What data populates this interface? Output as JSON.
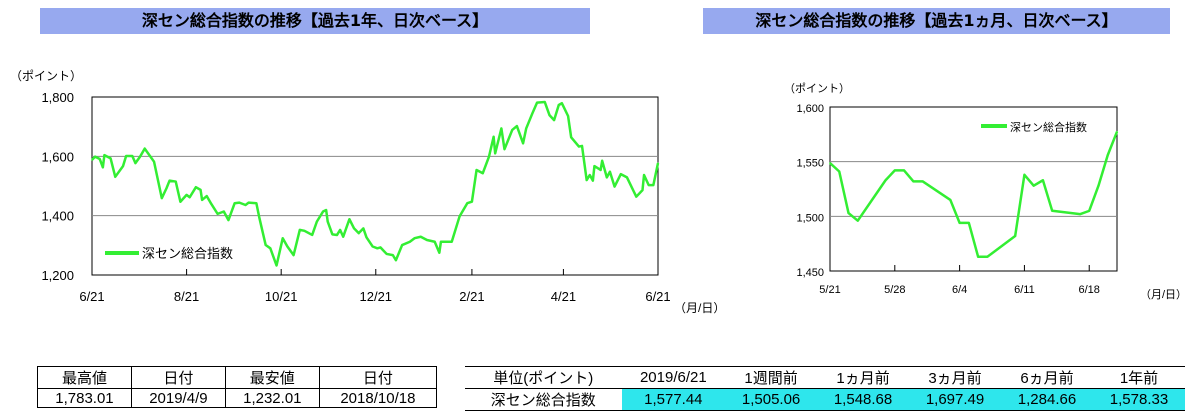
{
  "titles": {
    "left": "深セン総合指数の推移【過去1年、日次ベース】",
    "right": "深セン総合指数の推移【過去1ヵ月、日次ベース】"
  },
  "colors": {
    "line": "#33ee33",
    "title_bg": "#97a9ef",
    "highlight": "#2ee6ec"
  },
  "chart_data": [
    {
      "type": "line",
      "ylabel": "（ポイント）",
      "xlabel": "（月/日）",
      "ylim": [
        1200,
        1800
      ],
      "yticks": [
        "1,800",
        "1,600",
        "1,400",
        "1,200"
      ],
      "ytick_values": [
        1800,
        1600,
        1400,
        1200
      ],
      "xlim": [
        "2018-06-21",
        "2019-06-21"
      ],
      "xticks": [
        "6/21",
        "8/21",
        "10/21",
        "12/21",
        "2/21",
        "4/21",
        "6/21"
      ],
      "xtick_dates": [
        "2018-06-21",
        "2018-08-21",
        "2018-10-21",
        "2018-12-21",
        "2019-02-21",
        "2019-04-21",
        "2019-06-21"
      ],
      "grid": true,
      "legend": "bottom-left",
      "series": [
        {
          "name": "深セン総合指数",
          "x": [
            "2018-06-21",
            "2018-06-23",
            "2018-06-26",
            "2018-06-28",
            "2018-06-29",
            "2018-07-03",
            "2018-07-06",
            "2018-07-11",
            "2018-07-13",
            "2018-07-17",
            "2018-07-19",
            "2018-07-22",
            "2018-07-25",
            "2018-07-31",
            "2018-08-05",
            "2018-08-08",
            "2018-08-10",
            "2018-08-14",
            "2018-08-17",
            "2018-08-21",
            "2018-08-23",
            "2018-08-27",
            "2018-08-30",
            "2018-08-31",
            "2018-09-03",
            "2018-09-06",
            "2018-09-10",
            "2018-09-14",
            "2018-09-17",
            "2018-09-21",
            "2018-09-24",
            "2018-09-28",
            "2018-09-30",
            "2018-10-05",
            "2018-10-07",
            "2018-10-11",
            "2018-10-14",
            "2018-10-18",
            "2018-10-22",
            "2018-10-25",
            "2018-10-29",
            "2018-11-02",
            "2018-11-05",
            "2018-11-10",
            "2018-11-13",
            "2018-11-17",
            "2018-11-19",
            "2018-11-20",
            "2018-11-23",
            "2018-11-26",
            "2018-11-28",
            "2018-11-30",
            "2018-12-04",
            "2018-12-07",
            "2018-12-10",
            "2018-12-13",
            "2018-12-15",
            "2018-12-19",
            "2018-12-22",
            "2018-12-24",
            "2018-12-28",
            "2019-01-01",
            "2019-01-03",
            "2019-01-07",
            "2019-01-12",
            "2019-01-15",
            "2019-01-19",
            "2019-01-23",
            "2019-01-28",
            "2019-01-31",
            "2019-02-01",
            "2019-02-08",
            "2019-02-13",
            "2019-02-18",
            "2019-02-21",
            "2019-02-24",
            "2019-02-28",
            "2019-03-04",
            "2019-03-07",
            "2019-03-08",
            "2019-03-12",
            "2019-03-14",
            "2019-03-19",
            "2019-03-22",
            "2019-03-26",
            "2019-03-28",
            "2019-04-01",
            "2019-04-04",
            "2019-04-09",
            "2019-04-12",
            "2019-04-15",
            "2019-04-18",
            "2019-04-20",
            "2019-04-24",
            "2019-04-26",
            "2019-05-01",
            "2019-05-03",
            "2019-05-06",
            "2019-05-08",
            "2019-05-10",
            "2019-05-11",
            "2019-05-15",
            "2019-05-16",
            "2019-05-19",
            "2019-05-21",
            "2019-05-24",
            "2019-05-28",
            "2019-06-01",
            "2019-06-07",
            "2019-06-11",
            "2019-06-12",
            "2019-06-15",
            "2019-06-18",
            "2019-06-21"
          ],
          "y": [
            1588,
            1599,
            1591,
            1563,
            1604,
            1593,
            1531,
            1567,
            1601,
            1601,
            1577,
            1599,
            1626,
            1582,
            1459,
            1492,
            1518,
            1515,
            1447,
            1470,
            1462,
            1496,
            1487,
            1453,
            1466,
            1439,
            1406,
            1414,
            1385,
            1442,
            1444,
            1436,
            1444,
            1442,
            1391,
            1301,
            1290,
            1232,
            1324,
            1296,
            1267,
            1352,
            1349,
            1335,
            1380,
            1414,
            1419,
            1380,
            1337,
            1335,
            1352,
            1329,
            1388,
            1357,
            1341,
            1357,
            1327,
            1296,
            1290,
            1293,
            1271,
            1267,
            1250,
            1301,
            1312,
            1324,
            1329,
            1318,
            1312,
            1275,
            1312,
            1312,
            1397,
            1442,
            1447,
            1554,
            1543,
            1599,
            1666,
            1610,
            1694,
            1624,
            1689,
            1702,
            1644,
            1694,
            1745,
            1781,
            1783,
            1739,
            1722,
            1773,
            1779,
            1736,
            1664,
            1633,
            1635,
            1520,
            1537,
            1518,
            1567,
            1554,
            1585,
            1529,
            1548,
            1498,
            1540,
            1529,
            1464,
            1486,
            1537,
            1503,
            1503,
            1577
          ]
        }
      ]
    },
    {
      "type": "line",
      "ylabel": "（ポイント）",
      "xlabel": "（月/日）",
      "ylim": [
        1450,
        1600
      ],
      "yticks": [
        "1,600",
        "1,550",
        "1,500",
        "1,450"
      ],
      "ytick_values": [
        1600,
        1550,
        1500,
        1450
      ],
      "xlim": [
        "2019-05-21",
        "2019-06-21"
      ],
      "xticks": [
        "5/21",
        "5/28",
        "6/4",
        "6/11",
        "6/18"
      ],
      "xtick_dates": [
        "2019-05-21",
        "2019-05-28",
        "2019-06-04",
        "2019-06-11",
        "2019-06-18"
      ],
      "grid": true,
      "legend": "top-right",
      "series": [
        {
          "name": "深セン総合指数",
          "x": [
            "2019-05-21",
            "2019-05-22",
            "2019-05-23",
            "2019-05-24",
            "2019-05-27",
            "2019-05-28",
            "2019-05-29",
            "2019-05-30",
            "2019-05-31",
            "2019-06-03",
            "2019-06-04",
            "2019-06-05",
            "2019-06-06",
            "2019-06-07",
            "2019-06-10",
            "2019-06-11",
            "2019-06-12",
            "2019-06-13",
            "2019-06-14",
            "2019-06-17",
            "2019-06-18",
            "2019-06-19",
            "2019-06-20",
            "2019-06-21"
          ],
          "y": [
            1548.68,
            1541,
            1503,
            1496,
            1533,
            1542,
            1542,
            1532,
            1532,
            1515,
            1494,
            1494,
            1463,
            1463,
            1482,
            1538,
            1528,
            1533,
            1505.06,
            1502,
            1505,
            1528,
            1556,
            1577.44
          ]
        }
      ]
    }
  ],
  "table_left": {
    "headers": [
      "最高値",
      "日付",
      "最安値",
      "日付"
    ],
    "values": [
      "1,783.01",
      "2019/4/9",
      "1,232.01",
      "2018/10/18"
    ]
  },
  "table_right": {
    "headers": [
      "単位(ポイント)",
      "2019/6/21",
      "1週間前",
      "1ヵ月前",
      "3ヵ月前",
      "6ヵ月前",
      "1年前"
    ],
    "row_label": "深セン総合指数",
    "values": [
      "1,577.44",
      "1,505.06",
      "1,548.68",
      "1,697.49",
      "1,284.66",
      "1,578.33"
    ]
  }
}
